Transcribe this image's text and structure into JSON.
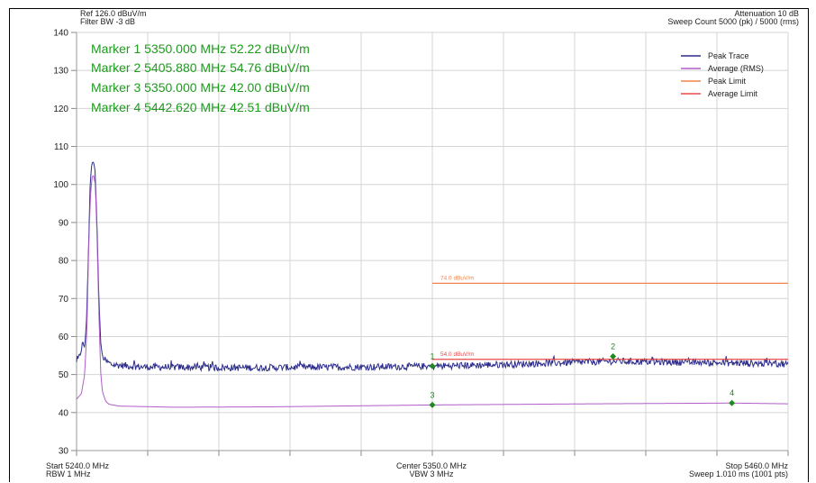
{
  "header": {
    "ref": "Ref 126.0 dBuV/m",
    "filter_bw": "Filter BW -3 dB",
    "attenuation": "Attenuation 10 dB",
    "sweep_count": "Sweep Count 5000 (pk) / 5000 (rms)"
  },
  "markers_text": [
    "Marker 1 5350.000 MHz 52.22 dBuV/m",
    "Marker 2 5405.880 MHz 54.76 dBuV/m",
    "Marker 3 5350.000 MHz 42.00 dBuV/m",
    "Marker 4 5442.620 MHz 42.51 dBuV/m"
  ],
  "footer": {
    "start": "Start 5240.0 MHz",
    "rbw": "RBW 1 MHz",
    "center": "Center 5350.0 MHz",
    "vbw": "VBW 3 MHz",
    "stop": "Stop 5460.0 MHz",
    "sweep": "Sweep 1.010 ms (1001 pts)"
  },
  "colors": {
    "peak_trace": "#2b2b8a",
    "average_trace": "#b05ec8",
    "peak_limit": "#f0844a",
    "average_limit": "#e84848",
    "marker": "#1e8a1e",
    "grid": "#d4d4d4"
  },
  "chart_data": {
    "type": "line",
    "xlim": [
      5240,
      5460
    ],
    "ylim": [
      30,
      140
    ],
    "y_ticks": [
      30,
      40,
      50,
      60,
      70,
      80,
      90,
      100,
      110,
      120,
      130,
      140
    ],
    "x_grid_divisions": 10,
    "grid": true,
    "legend_position": "top-right",
    "series": [
      {
        "name": "Peak Trace",
        "color": "#2b2b8a",
        "noise": 0.9,
        "points": [
          [
            5240,
            53
          ],
          [
            5241,
            55
          ],
          [
            5241.8,
            58
          ],
          [
            5242.5,
            57.5
          ],
          [
            5243,
            62
          ],
          [
            5243.6,
            80
          ],
          [
            5244.2,
            100
          ],
          [
            5244.7,
            105.5
          ],
          [
            5245.2,
            106
          ],
          [
            5245.7,
            104
          ],
          [
            5246.3,
            90
          ],
          [
            5246.9,
            70
          ],
          [
            5247.5,
            58
          ],
          [
            5248,
            55
          ],
          [
            5249,
            53.5
          ],
          [
            5251,
            52.6
          ],
          [
            5260,
            52
          ],
          [
            5290,
            51.8
          ],
          [
            5330,
            52
          ],
          [
            5350,
            52.2
          ],
          [
            5370,
            52.6
          ],
          [
            5405.9,
            53.5
          ],
          [
            5430,
            53.2
          ],
          [
            5460,
            52.8
          ]
        ]
      },
      {
        "name": "Average (RMS)",
        "color": "#b05ec8",
        "noise": 0,
        "points": [
          [
            5240,
            43.5
          ],
          [
            5241.5,
            45
          ],
          [
            5242.5,
            50
          ],
          [
            5243.2,
            62
          ],
          [
            5243.8,
            85
          ],
          [
            5244.3,
            97
          ],
          [
            5244.8,
            102
          ],
          [
            5245.3,
            102.3
          ],
          [
            5245.8,
            100
          ],
          [
            5246.3,
            87
          ],
          [
            5246.9,
            66
          ],
          [
            5247.5,
            50
          ],
          [
            5248,
            45.5
          ],
          [
            5249,
            43
          ],
          [
            5250,
            42.2
          ],
          [
            5253,
            41.7
          ],
          [
            5270,
            41.4
          ],
          [
            5300,
            41.5
          ],
          [
            5350,
            42
          ],
          [
            5400,
            42.3
          ],
          [
            5442.6,
            42.5
          ],
          [
            5460,
            42.3
          ]
        ]
      },
      {
        "name": "Peak Limit",
        "color": "#f0844a",
        "x_range": [
          5350,
          5460
        ],
        "value": 74,
        "label": "74.0 dBuV/m"
      },
      {
        "name": "Average Limit",
        "color": "#e84848",
        "x_range": [
          5350,
          5460
        ],
        "value": 54,
        "label": "54.0 dBuV/m"
      }
    ],
    "markers": [
      {
        "label": "1",
        "x": 5350.0,
        "y": 52.22
      },
      {
        "label": "2",
        "x": 5405.88,
        "y": 54.76
      },
      {
        "label": "3",
        "x": 5350.0,
        "y": 42.0
      },
      {
        "label": "4",
        "x": 5442.62,
        "y": 42.51
      }
    ]
  }
}
